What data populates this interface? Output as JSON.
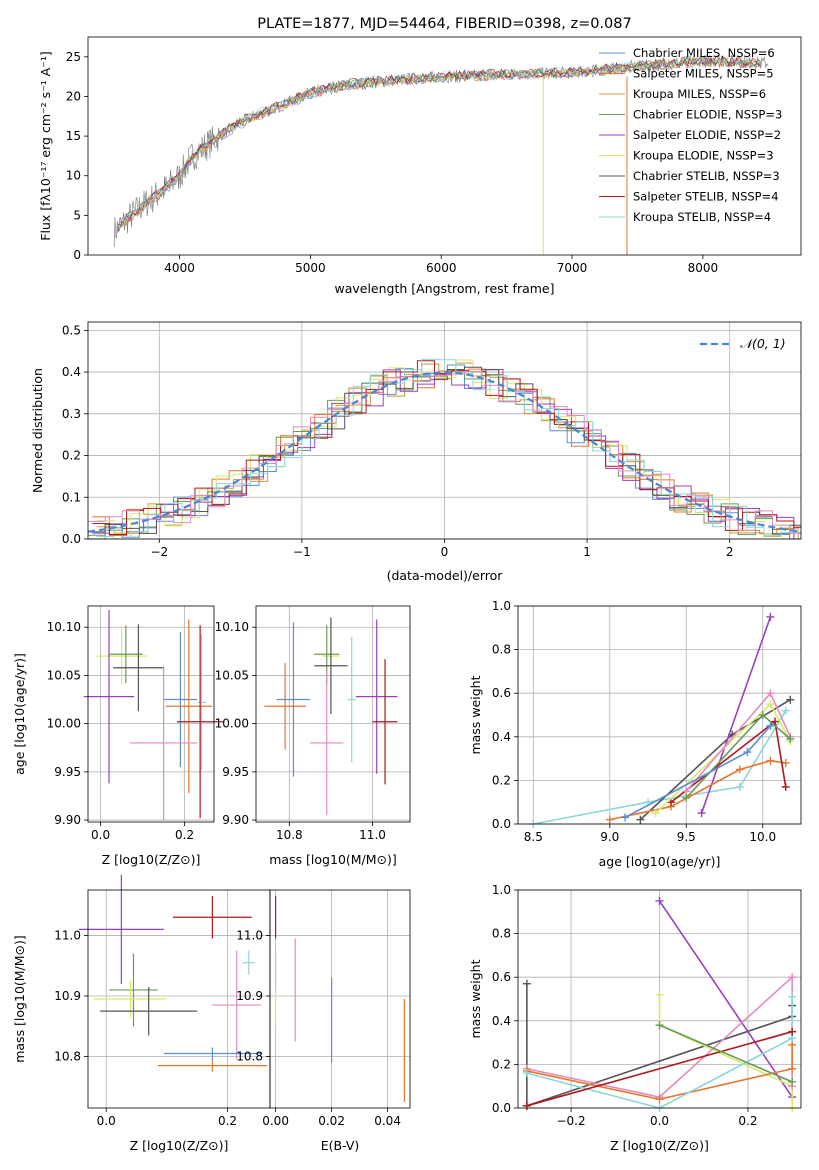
{
  "colors": {
    "chabrier_miles": "#5b8fd6",
    "salpeter_miles": "#e8762c",
    "kroupa_miles": "#c89a3c",
    "chabrier_elodie": "#6a9a5a",
    "salpeter_elodie": "#9b3fbf",
    "kroupa_elodie": "#d7ea6a",
    "chabrier_stelib": "#555555",
    "salpeter_stelib": "#b0181b",
    "kroupa_stelib": "#8ad6dc",
    "pink": "#e48ac0",
    "data": "#777777"
  },
  "chart_data": [
    {
      "id": "spectrum",
      "type": "line",
      "title": "PLATE=1877, MJD=54464, FIBERID=0398, z=0.087",
      "xlabel": "wavelength [Angstrom, rest frame]",
      "ylabel": "Flux [fλ10⁻¹⁷ erg cm⁻² s⁻¹ A⁻¹]",
      "xlim": [
        3300,
        8750
      ],
      "ylim": [
        0,
        27.5
      ],
      "xticks": [
        4000,
        5000,
        6000,
        7000,
        8000
      ],
      "yticks": [
        0,
        5,
        10,
        15,
        20,
        25
      ],
      "grid": false,
      "legend_position": "top-right",
      "legend": [
        "Chabrier MILES, NSSP=6",
        "Salpeter MILES, NSSP=5",
        "Kroupa MILES, NSSP=6",
        "Chabrier ELODIE, NSSP=3",
        "Salpeter ELODIE, NSSP=2",
        "Kroupa ELODIE, NSSP=3",
        "Chabrier STELIB, NSSP=3",
        "Salpeter STELIB, NSSP=4",
        "Kroupa STELIB, NSSP=4"
      ],
      "continuum": {
        "x": [
          3500,
          3700,
          3900,
          4000,
          4100,
          4300,
          4500,
          4800,
          5000,
          5300,
          5600,
          6000,
          6500,
          7000,
          7500,
          8000,
          8500
        ],
        "y": [
          3,
          6,
          8.5,
          10,
          12.5,
          15,
          17,
          19,
          20.5,
          21.5,
          22,
          22.5,
          22.8,
          23,
          23.8,
          24.5,
          24.2
        ]
      },
      "drops": [
        {
          "x": 6780,
          "y": 0,
          "color_key": "kroupa_elodie"
        },
        {
          "x": 7420,
          "y": 0,
          "color_key": "salpeter_miles"
        }
      ]
    },
    {
      "id": "residuals",
      "type": "line",
      "xlabel": "(data-model)/error",
      "ylabel": "Normed distribution",
      "xlim": [
        -2.5,
        2.5
      ],
      "ylim": [
        0,
        0.52
      ],
      "xticks": [
        -2,
        -1,
        0,
        1,
        2
      ],
      "yticks": [
        0.0,
        0.1,
        0.2,
        0.3,
        0.4,
        0.5
      ],
      "grid": true,
      "legend_position": "top-right",
      "legend": [
        "𝒩(0, 1)"
      ]
    },
    {
      "id": "age_vs_Z",
      "type": "scatter",
      "xlabel": "Z [log10(Z/Z⊙)]",
      "ylabel": "age  [log10(age/yr)]",
      "xlim": [
        -0.03,
        0.27
      ],
      "ylim": [
        9.898,
        10.122
      ],
      "xticks": [
        0.0,
        0.2
      ],
      "yticks": [
        9.9,
        9.95,
        10.0,
        10.05,
        10.1
      ],
      "grid": true,
      "points": [
        {
          "x": 0.05,
          "y": 10.07,
          "xerr": 0.06,
          "yerr": 0.03,
          "color_key": "kroupa_elodie"
        },
        {
          "x": 0.06,
          "y": 10.072,
          "xerr": 0.04,
          "yerr": 0.03,
          "color_key": "chabrier_elodie"
        },
        {
          "x": 0.09,
          "y": 10.058,
          "xerr": 0.06,
          "yerr": 0.045,
          "color_key": "chabrier_stelib"
        },
        {
          "x": 0.02,
          "y": 10.028,
          "xerr": 0.06,
          "yerr": 0.09,
          "color_key": "salpeter_elodie"
        },
        {
          "x": 0.19,
          "y": 10.025,
          "xerr": 0.04,
          "yerr": 0.07,
          "color_key": "chabrier_miles"
        },
        {
          "x": 0.24,
          "y": 10.022,
          "xerr": 0.01,
          "yerr": 0.07,
          "color_key": "kroupa_stelib"
        },
        {
          "x": 0.21,
          "y": 10.018,
          "xerr": 0.055,
          "yerr": 0.09,
          "color_key": "salpeter_miles"
        },
        {
          "x": 0.237,
          "y": 10.002,
          "xerr": 0.055,
          "yerr": 0.1,
          "color_key": "salpeter_stelib"
        },
        {
          "x": 0.15,
          "y": 9.98,
          "xerr": 0.08,
          "yerr": 0.08,
          "color_key": "pink"
        }
      ]
    },
    {
      "id": "age_vs_mass",
      "type": "scatter",
      "xlabel": "mass [log10(M/M⊙)]",
      "ylabel": "",
      "xlim": [
        10.72,
        11.09
      ],
      "ylim": [
        9.898,
        10.122
      ],
      "xticks": [
        10.8,
        11.0
      ],
      "yticks": [
        9.9,
        9.95,
        10.0,
        10.05,
        10.1
      ],
      "grid": true,
      "points": [
        {
          "x": 10.9,
          "y": 10.07,
          "xerr": 0.02,
          "yerr": 0.04,
          "color_key": "kroupa_elodie"
        },
        {
          "x": 10.89,
          "y": 10.072,
          "xerr": 0.03,
          "yerr": 0.03,
          "color_key": "chabrier_elodie"
        },
        {
          "x": 10.9,
          "y": 10.06,
          "xerr": 0.04,
          "yerr": 0.05,
          "color_key": "chabrier_stelib"
        },
        {
          "x": 11.01,
          "y": 10.028,
          "xerr": 0.05,
          "yerr": 0.08,
          "color_key": "salpeter_elodie"
        },
        {
          "x": 10.81,
          "y": 10.025,
          "xerr": 0.04,
          "yerr": 0.08,
          "color_key": "chabrier_miles"
        },
        {
          "x": 10.95,
          "y": 10.025,
          "xerr": 0.01,
          "yerr": 0.065,
          "color_key": "kroupa_stelib"
        },
        {
          "x": 10.79,
          "y": 10.018,
          "xerr": 0.05,
          "yerr": 0.045,
          "color_key": "salpeter_miles"
        },
        {
          "x": 11.03,
          "y": 10.002,
          "xerr": 0.03,
          "yerr": 0.065,
          "color_key": "salpeter_stelib"
        },
        {
          "x": 10.89,
          "y": 9.98,
          "xerr": 0.04,
          "yerr": 0.075,
          "color_key": "pink"
        }
      ]
    },
    {
      "id": "massweight_vs_age",
      "type": "line",
      "xlabel": "age  [log10(age/yr)]",
      "ylabel": "mass weight",
      "xlim": [
        8.4,
        10.25
      ],
      "ylim": [
        0.0,
        1.0
      ],
      "xticks": [
        8.5,
        9.0,
        9.5,
        10.0
      ],
      "yticks": [
        0.0,
        0.2,
        0.4,
        0.6,
        0.8,
        1.0
      ],
      "grid": true,
      "series": [
        {
          "color_key": "kroupa_stelib",
          "x": [
            8.5,
            9.25,
            9.85,
            10.15
          ],
          "y": [
            0.0,
            0.1,
            0.17,
            0.52
          ]
        },
        {
          "color_key": "chabrier_stelib",
          "x": [
            9.2,
            9.8,
            10.18
          ],
          "y": [
            0.02,
            0.41,
            0.57
          ]
        },
        {
          "color_key": "salpeter_elodie",
          "x": [
            9.6,
            10.05
          ],
          "y": [
            0.05,
            0.95
          ]
        },
        {
          "color_key": "salpeter_miles",
          "x": [
            9.0,
            9.4,
            9.85,
            10.05,
            10.15
          ],
          "y": [
            0.02,
            0.08,
            0.25,
            0.29,
            0.28
          ]
        },
        {
          "color_key": "salpeter_stelib",
          "x": [
            9.4,
            10.08,
            10.15
          ],
          "y": [
            0.1,
            0.47,
            0.17
          ]
        },
        {
          "color_key": "kroupa_elodie",
          "x": [
            9.3,
            10.05,
            10.18
          ],
          "y": [
            0.05,
            0.55,
            0.38
          ]
        },
        {
          "color_key": "pink",
          "x": [
            9.5,
            10.05,
            10.18
          ],
          "y": [
            0.15,
            0.6,
            0.4
          ]
        },
        {
          "color_key": "chabrier_elodie",
          "x": [
            9.5,
            10.0,
            10.18
          ],
          "y": [
            0.12,
            0.5,
            0.39
          ]
        },
        {
          "color_key": "chabrier_miles",
          "x": [
            9.1,
            9.9,
            10.05
          ],
          "y": [
            0.03,
            0.33,
            0.45
          ]
        }
      ]
    },
    {
      "id": "mass_vs_Z",
      "type": "scatter",
      "xlabel": "Z [log10(Z/Z⊙)]",
      "ylabel": "mass [log10(M/M⊙)]",
      "xlim": [
        -0.03,
        0.27
      ],
      "ylim": [
        10.715,
        11.075
      ],
      "xticks": [
        0.0,
        0.2
      ],
      "yticks": [
        10.8,
        10.9,
        11.0
      ],
      "grid": true,
      "points": [
        {
          "x": 0.175,
          "y": 11.03,
          "xerr": 0.065,
          "yerr": 0.035,
          "color_key": "salpeter_stelib"
        },
        {
          "x": 0.025,
          "y": 11.01,
          "xerr": 0.07,
          "yerr": 0.09,
          "color_key": "salpeter_elodie"
        },
        {
          "x": 0.235,
          "y": 10.955,
          "xerr": 0.01,
          "yerr": 0.02,
          "color_key": "kroupa_stelib"
        },
        {
          "x": 0.045,
          "y": 10.91,
          "xerr": 0.04,
          "yerr": 0.06,
          "color_key": "chabrier_elodie"
        },
        {
          "x": 0.04,
          "y": 10.895,
          "xerr": 0.06,
          "yerr": 0.03,
          "color_key": "kroupa_elodie"
        },
        {
          "x": 0.215,
          "y": 10.885,
          "xerr": 0.04,
          "yerr": 0.09,
          "color_key": "pink"
        },
        {
          "x": 0.07,
          "y": 10.875,
          "xerr": 0.08,
          "yerr": 0.04,
          "color_key": "chabrier_stelib"
        },
        {
          "x": 0.175,
          "y": 10.805,
          "xerr": 0.08,
          "yerr": 0.01,
          "color_key": "chabrier_miles"
        },
        {
          "x": 0.175,
          "y": 10.785,
          "xerr": 0.09,
          "yerr": 0.01,
          "color_key": "salpeter_miles"
        }
      ]
    },
    {
      "id": "mass_vs_EBV",
      "type": "scatter",
      "xlabel": "E(B-V)",
      "ylabel": "",
      "xlim": [
        -0.002,
        0.048
      ],
      "ylim": [
        10.715,
        11.075
      ],
      "xticks": [
        0.0,
        0.02,
        0.04
      ],
      "yticks": [
        10.8,
        10.9,
        11.0
      ],
      "grid": true,
      "points": [
        {
          "x": 0.0,
          "y": 11.03,
          "xerr": 0.0,
          "yerr": 0.035,
          "color_key": "salpeter_stelib"
        },
        {
          "x": 0.0,
          "y": 10.94,
          "xerr": 0.0,
          "yerr": 0.04,
          "color_key": "kroupa_stelib"
        },
        {
          "x": 0.0,
          "y": 10.88,
          "xerr": 0.0,
          "yerr": 0.03,
          "color_key": "kroupa_elodie"
        },
        {
          "x": 0.007,
          "y": 10.91,
          "xerr": 0.0,
          "yerr": 0.085,
          "color_key": "pink"
        },
        {
          "x": 0.02,
          "y": 10.86,
          "xerr": 0.0,
          "yerr": 0.07,
          "color_key": "chabrier_miles"
        },
        {
          "x": 0.046,
          "y": 10.81,
          "xerr": 0.0,
          "yerr": 0.085,
          "color_key": "salpeter_miles"
        }
      ]
    },
    {
      "id": "massweight_vs_Z",
      "type": "line",
      "xlabel": "Z [log10(Z/Z⊙)]",
      "ylabel": "mass weight",
      "xlim": [
        -0.32,
        0.32
      ],
      "ylim": [
        0.0,
        1.0
      ],
      "xticks": [
        -0.2,
        0.0,
        0.2
      ],
      "yticks": [
        0.0,
        0.2,
        0.4,
        0.6,
        0.8,
        1.0
      ],
      "grid": true,
      "series": [
        {
          "color_key": "chabrier_stelib",
          "x": [
            -0.3,
            -0.3,
            0.3,
            0.3
          ],
          "y": [
            0.57,
            0.01,
            0.42,
            0.47
          ]
        },
        {
          "color_key": "salpeter_elodie",
          "x": [
            0.0,
            0.3
          ],
          "y": [
            0.95,
            0.05
          ]
        },
        {
          "color_key": "kroupa_elodie",
          "x": [
            0.0,
            0.0,
            0.3,
            0.3
          ],
          "y": [
            0.52,
            0.38,
            0.1,
            0.0
          ]
        },
        {
          "color_key": "pink",
          "x": [
            -0.3,
            0.0,
            0.3,
            0.3
          ],
          "y": [
            0.18,
            0.05,
            0.6,
            0.1
          ]
        },
        {
          "color_key": "salpeter_miles",
          "x": [
            -0.3,
            0.0,
            0.3,
            0.3
          ],
          "y": [
            0.17,
            0.04,
            0.18,
            0.29
          ]
        },
        {
          "color_key": "kroupa_stelib",
          "x": [
            -0.3,
            0.0,
            0.3,
            0.3
          ],
          "y": [
            0.16,
            0.0,
            0.32,
            0.51
          ]
        },
        {
          "color_key": "salpeter_stelib",
          "x": [
            -0.3,
            0.3
          ],
          "y": [
            0.01,
            0.35
          ]
        },
        {
          "color_key": "chabrier_elodie",
          "x": [
            0.0,
            0.3
          ],
          "y": [
            0.38,
            0.12
          ]
        }
      ]
    }
  ]
}
